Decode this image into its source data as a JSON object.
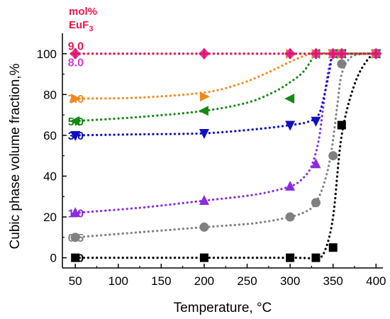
{
  "chart_data": {
    "type": "scatter",
    "xlabel": "Temperature, °C",
    "ylabel": "Cubic phase volume fraction,%",
    "legend_title": [
      "mol%",
      "EuF",
      "3"
    ],
    "xlim": [
      35,
      408
    ],
    "ylim": [
      -5,
      110
    ],
    "x_ticks": [
      50,
      100,
      150,
      200,
      250,
      300,
      350,
      400
    ],
    "y_ticks": [
      0,
      20,
      40,
      60,
      80,
      100
    ],
    "x_tick_labels": [
      "50",
      "100",
      "150",
      "200",
      "250",
      "300",
      "350",
      "400"
    ],
    "y_tick_labels": [
      "0",
      "20",
      "40",
      "60",
      "80",
      "100"
    ],
    "legend_placement": "inline-left",
    "series": [
      {
        "label": "0",
        "color": "#000000",
        "marker": "square",
        "x": [
          50,
          200,
          300,
          330,
          350,
          360,
          400
        ],
        "y": [
          0,
          0,
          0,
          0,
          5,
          65,
          100
        ],
        "curve_x": [
          50,
          200,
          300,
          330,
          340,
          350,
          360,
          375,
          390,
          400
        ],
        "curve_y": [
          0,
          0,
          0,
          0,
          3,
          20,
          60,
          85,
          97,
          100
        ]
      },
      {
        "label": "0.5",
        "color": "#808080",
        "marker": "circle",
        "x": [
          50,
          200,
          300,
          330,
          350,
          360,
          400
        ],
        "y": [
          10,
          15,
          20,
          27,
          50,
          95,
          100
        ],
        "curve_x": [
          50,
          125,
          200,
          260,
          300,
          320,
          330,
          340,
          348,
          355,
          360,
          370,
          385,
          400
        ],
        "curve_y": [
          10,
          12.5,
          15,
          17,
          20,
          23,
          27,
          37,
          52,
          75,
          90,
          98,
          100,
          100
        ]
      },
      {
        "label": "1.0",
        "color": "#8b2be2",
        "marker": "triangle-up",
        "x": [
          50,
          200,
          300,
          330,
          350,
          360,
          400
        ],
        "y": [
          22,
          28,
          35,
          46,
          100,
          100,
          100
        ],
        "curve_x": [
          50,
          125,
          200,
          260,
          300,
          315,
          325,
          333,
          338,
          343,
          350,
          360,
          400
        ],
        "curve_y": [
          22,
          24.5,
          28,
          31,
          35,
          39,
          45,
          57,
          72,
          88,
          100,
          100,
          100
        ]
      },
      {
        "label": "3.0",
        "color": "#1010c0",
        "marker": "triangle-down",
        "x": [
          50,
          200,
          300,
          330,
          350,
          360,
          400
        ],
        "y": [
          60,
          61,
          65,
          67,
          100,
          100,
          100
        ],
        "curve_x": [
          50,
          125,
          200,
          260,
          300,
          320,
          333,
          340,
          346,
          350,
          360,
          400
        ],
        "curve_y": [
          60,
          60.5,
          61,
          63,
          65,
          66.5,
          70,
          80,
          92,
          100,
          100,
          100
        ]
      },
      {
        "label": "5.0",
        "color": "#138a13",
        "marker": "triangle-left",
        "x": [
          50,
          200,
          300,
          330,
          350,
          360,
          400
        ],
        "y": [
          67,
          72,
          78,
          100,
          100,
          100,
          100
        ],
        "curve_x": [
          50,
          125,
          200,
          250,
          280,
          300,
          315,
          325,
          330,
          350,
          400
        ],
        "curve_y": [
          67,
          69,
          72,
          76,
          81,
          86,
          91,
          97,
          100,
          100,
          100
        ]
      },
      {
        "label": "7.0",
        "color": "#f08a1c",
        "marker": "triangle-right",
        "x": [
          50,
          200,
          300,
          330,
          350,
          360,
          400
        ],
        "y": [
          78,
          79,
          100,
          100,
          100,
          100,
          100
        ],
        "curve_x": [
          50,
          125,
          200,
          240,
          270,
          290,
          305,
          320,
          330,
          400
        ],
        "curve_y": [
          78,
          78.5,
          81,
          85,
          90,
          94,
          97,
          99.5,
          100,
          100
        ]
      },
      {
        "label": "8.0",
        "color": "#d63bd6",
        "marker": "diamond",
        "x": [
          50,
          200,
          300,
          330,
          350,
          360,
          400
        ],
        "y": [
          100,
          100,
          100,
          100,
          100,
          100,
          100
        ],
        "curve_x": [
          50,
          400
        ],
        "curve_y": [
          100,
          100
        ]
      },
      {
        "label": "9.0",
        "color": "#e8174d",
        "marker": "plus",
        "x": [
          50,
          200,
          300,
          330,
          350,
          360,
          400
        ],
        "y": [
          100,
          100,
          100,
          100,
          100,
          100,
          100
        ],
        "curve_x": [
          50,
          400
        ],
        "curve_y": [
          100,
          100
        ]
      }
    ],
    "series_labels": [
      {
        "text": "0",
        "color": "#000000",
        "y": 0
      },
      {
        "text": "0.5",
        "color": "#808080",
        "y": 10
      },
      {
        "text": "1.0",
        "color": "#8b2be2",
        "y": 22
      },
      {
        "text": "3.0",
        "color": "#1010c0",
        "y": 60
      },
      {
        "text": "5.0",
        "color": "#138a13",
        "y": 67
      },
      {
        "text": "7.0",
        "color": "#f08a1c",
        "y": 78
      },
      {
        "text": "8.0",
        "color": "#d63bd6",
        "y": 96
      },
      {
        "text": "9.0",
        "color": "#e8174d",
        "y": 104
      }
    ]
  }
}
